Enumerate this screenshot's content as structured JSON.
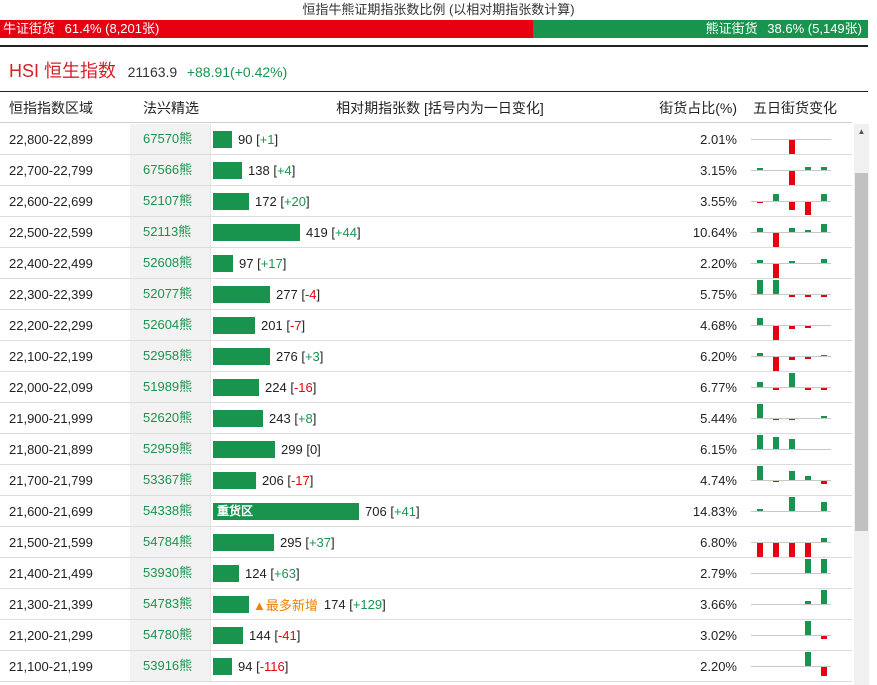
{
  "title": "恒指牛熊证期指张数比例 (以相对期指张数计算)",
  "ratio": {
    "bull_label": "牛证街货",
    "bull_pct": "61.4%",
    "bull_count": "(8,201张)",
    "bull_fraction": 0.614,
    "bear_label": "熊证街货",
    "bear_pct": "38.6%",
    "bear_count": "(5,149张)",
    "bull_color": "#e60012",
    "bear_color": "#19944e"
  },
  "index": {
    "name": "HSI 恒生指数",
    "price": "21163.9",
    "change": "+88.91(+0.42%)"
  },
  "headers": {
    "range": "恒指指数区域",
    "pick": "法兴精选",
    "contracts": "相对期指张数 [括号内为一日变化]",
    "share": "街货占比(%)",
    "five_day": "五日街货变化"
  },
  "max_contracts": 706,
  "rows": [
    {
      "range": "22,800-22,899",
      "code": "67570熊",
      "amount": 90,
      "change": "+1",
      "share": "2.01%",
      "spark": [
        0,
        0,
        -14,
        0,
        0
      ]
    },
    {
      "range": "22,700-22,799",
      "code": "67566熊",
      "amount": 138,
      "change": "+4",
      "share": "3.15%",
      "spark": [
        2,
        0,
        -14,
        3,
        3
      ]
    },
    {
      "range": "22,600-22,699",
      "code": "52107熊",
      "amount": 172,
      "change": "+20",
      "share": "3.55%",
      "spark": [
        -1,
        7,
        -8,
        -13,
        7
      ]
    },
    {
      "range": "22,500-22,599",
      "code": "52113熊",
      "amount": 419,
      "change": "+44",
      "share": "10.64%",
      "spark": [
        4,
        -14,
        4,
        2,
        8
      ]
    },
    {
      "range": "22,400-22,499",
      "code": "52608熊",
      "amount": 97,
      "change": "+17",
      "share": "2.20%",
      "spark": [
        3,
        -14,
        2,
        0,
        4
      ]
    },
    {
      "range": "22,300-22,399",
      "code": "52077熊",
      "amount": 277,
      "change": "-4",
      "share": "5.75%",
      "spark": [
        14,
        14,
        -2,
        -2,
        -2
      ]
    },
    {
      "range": "22,200-22,299",
      "code": "52604熊",
      "amount": 201,
      "change": "-7",
      "share": "4.68%",
      "spark": [
        7,
        -14,
        -3,
        -2,
        0
      ]
    },
    {
      "range": "22,100-22,199",
      "code": "52958熊",
      "amount": 276,
      "change": "+3",
      "share": "6.20%",
      "spark": [
        3,
        -14,
        -3,
        -2,
        1
      ]
    },
    {
      "range": "22,000-22,099",
      "code": "51989熊",
      "amount": 224,
      "change": "-16",
      "share": "6.77%",
      "spark": [
        5,
        -2,
        14,
        -2,
        -2
      ]
    },
    {
      "range": "21,900-21,999",
      "code": "52620熊",
      "amount": 243,
      "change": "+8",
      "share": "5.44%",
      "spark": [
        14,
        -1,
        -1,
        0,
        2
      ]
    },
    {
      "range": "21,800-21,899",
      "code": "52959熊",
      "amount": 299,
      "change": "0",
      "share": "6.15%",
      "spark": [
        14,
        12,
        10,
        0,
        0
      ]
    },
    {
      "range": "21,700-21,799",
      "code": "53367熊",
      "amount": 206,
      "change": "-17",
      "share": "4.74%",
      "spark": [
        14,
        -1,
        9,
        4,
        -3
      ]
    },
    {
      "range": "21,600-21,699",
      "code": "54338熊",
      "amount": 706,
      "change": "+41",
      "share": "14.83%",
      "spark": [
        2,
        0,
        14,
        0,
        9
      ],
      "label": "重货区"
    },
    {
      "range": "21,500-21,599",
      "code": "54784熊",
      "amount": 295,
      "change": "+37",
      "share": "6.80%",
      "spark": [
        -14,
        -14,
        -14,
        -14,
        4
      ]
    },
    {
      "range": "21,400-21,499",
      "code": "53930熊",
      "amount": 124,
      "change": "+63",
      "share": "2.79%",
      "spark": [
        0,
        0,
        0,
        14,
        14
      ]
    },
    {
      "range": "21,300-21,399",
      "code": "54783熊",
      "amount": 174,
      "change": "+129",
      "share": "3.66%",
      "spark": [
        0,
        0,
        0,
        3,
        14
      ],
      "badge": "▲最多新增"
    },
    {
      "range": "21,200-21,299",
      "code": "54780熊",
      "amount": 144,
      "change": "-41",
      "share": "3.02%",
      "spark": [
        0,
        0,
        0,
        14,
        -3
      ]
    },
    {
      "range": "21,100-21,199",
      "code": "53916熊",
      "amount": 94,
      "change": "-116",
      "share": "2.20%",
      "spark": [
        0,
        0,
        0,
        14,
        -9
      ]
    }
  ]
}
